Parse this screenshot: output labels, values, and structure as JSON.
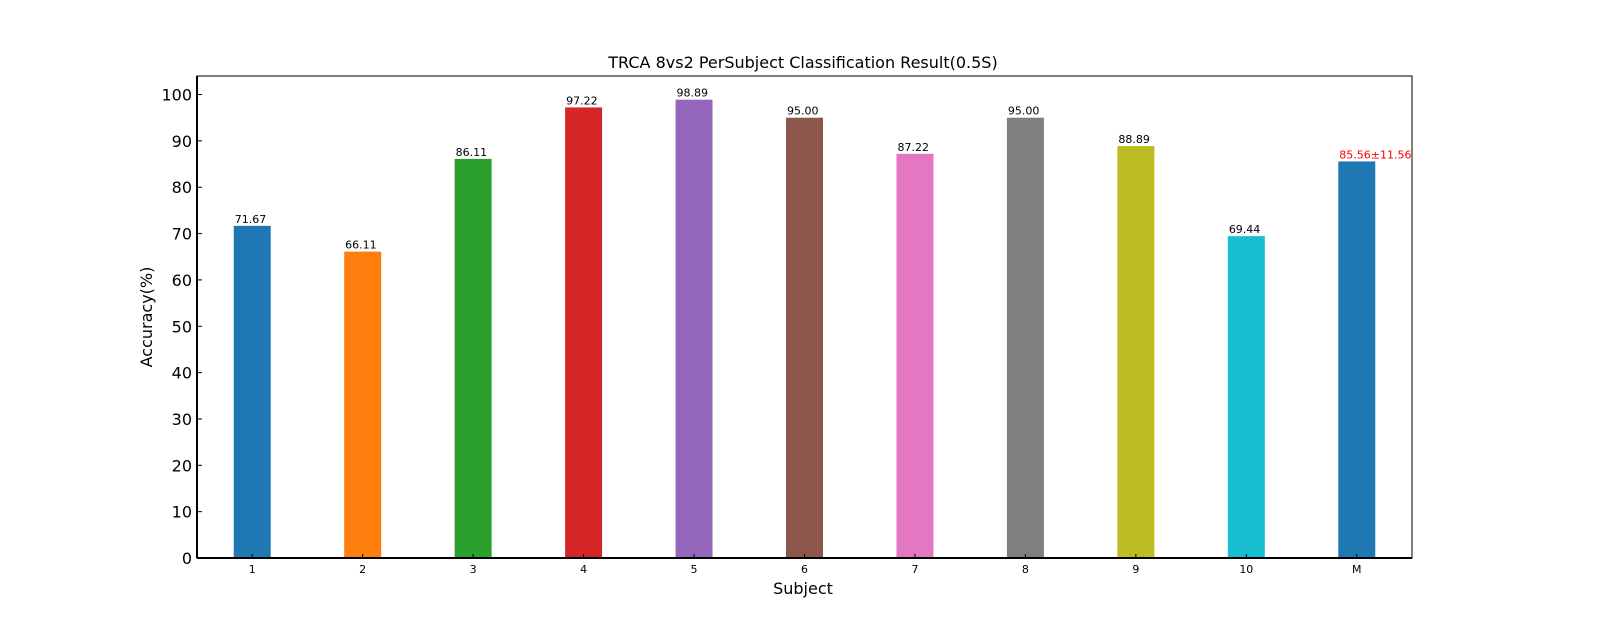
{
  "chart_data": {
    "type": "bar",
    "title": "TRCA 8vs2 PerSubject Classification Result(0.5S)",
    "xlabel": "Subject",
    "ylabel": "Accuracy(%)",
    "categories": [
      "1",
      "2",
      "3",
      "4",
      "5",
      "6",
      "7",
      "8",
      "9",
      "10",
      "M"
    ],
    "values": [
      71.67,
      66.11,
      86.11,
      97.22,
      98.89,
      95.0,
      87.22,
      95.0,
      88.89,
      69.44,
      85.56
    ],
    "data_labels": [
      "71.67",
      "66.11",
      "86.11",
      "97.22",
      "98.89",
      "95.00",
      "87.22",
      "95.00",
      "88.89",
      "69.44",
      "85.56±11.56"
    ],
    "colors": [
      "#1f77b4",
      "#ff7f0e",
      "#2ca02c",
      "#d62728",
      "#9467bd",
      "#8c564b",
      "#e377c2",
      "#7f7f7f",
      "#bcbd22",
      "#17becf",
      "#1f77b4"
    ],
    "label_colors": [
      "#000000",
      "#000000",
      "#000000",
      "#000000",
      "#000000",
      "#000000",
      "#000000",
      "#000000",
      "#000000",
      "#000000",
      "#ff0000"
    ],
    "ylim": [
      0,
      104
    ],
    "yticks": [
      0,
      10,
      20,
      30,
      40,
      50,
      60,
      70,
      80,
      90,
      100
    ],
    "grid": false,
    "legend": "none"
  }
}
